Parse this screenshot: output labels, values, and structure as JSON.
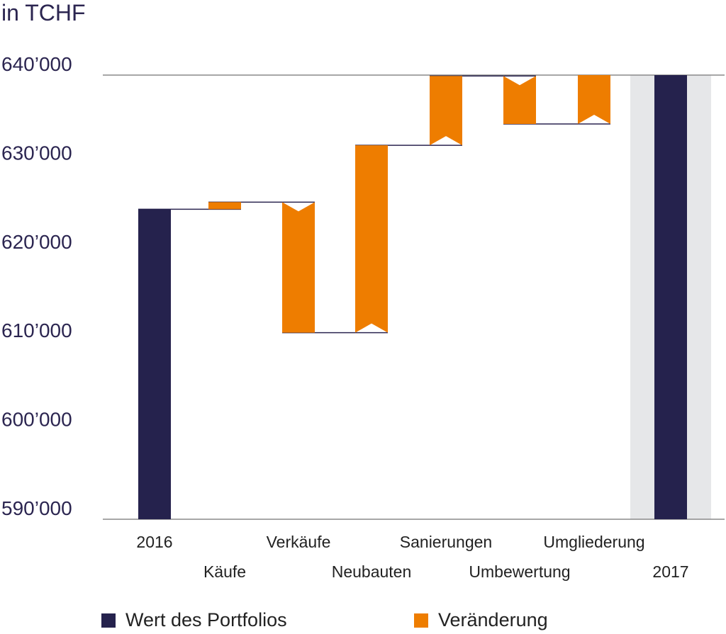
{
  "unit_label": "in TCHF",
  "legend": {
    "total_label": "Wert des Portfolios",
    "change_label": "Veränderung"
  },
  "colors": {
    "total": "#25224d",
    "change": "#ee7d00",
    "highlight": "#e6e7e9",
    "axis": "#8a8a8a",
    "connector": "#2b2550"
  },
  "chart_data": {
    "type": "bar",
    "subtype": "waterfall",
    "title": "",
    "xlabel": "",
    "ylabel": "in TCHF",
    "ylim": [
      590000,
      640000
    ],
    "yticks": [
      "590’000",
      "600’000",
      "610’000",
      "620’000",
      "630’000",
      "640’000"
    ],
    "ytick_values": [
      590000,
      600000,
      610000,
      620000,
      630000,
      640000
    ],
    "categories": [
      "2016",
      "Käufe",
      "Verkäufe",
      "Neubauten",
      "Sanierungen",
      "Umbewertung",
      "Umgliederung",
      "2017"
    ],
    "bars": [
      {
        "label": "2016",
        "kind": "total",
        "start": 590000,
        "end": 624900
      },
      {
        "label": "Käufe",
        "kind": "change",
        "start": 624900,
        "end": 625700
      },
      {
        "label": "Verkäufe",
        "kind": "change",
        "start": 625700,
        "end": 611000
      },
      {
        "label": "Neubauten",
        "kind": "change",
        "start": 611000,
        "end": 632100
      },
      {
        "label": "Sanierungen",
        "kind": "change",
        "start": 632100,
        "end": 639900
      },
      {
        "label": "Umbewertung",
        "kind": "change",
        "start": 639900,
        "end": 634500
      },
      {
        "label": "Umgliederung",
        "kind": "change",
        "start": 634500,
        "end": 640000
      },
      {
        "label": "2017",
        "kind": "total",
        "start": 590000,
        "end": 640000
      }
    ],
    "highlight_category": "2017",
    "grid": false,
    "legend_position": "bottom"
  }
}
